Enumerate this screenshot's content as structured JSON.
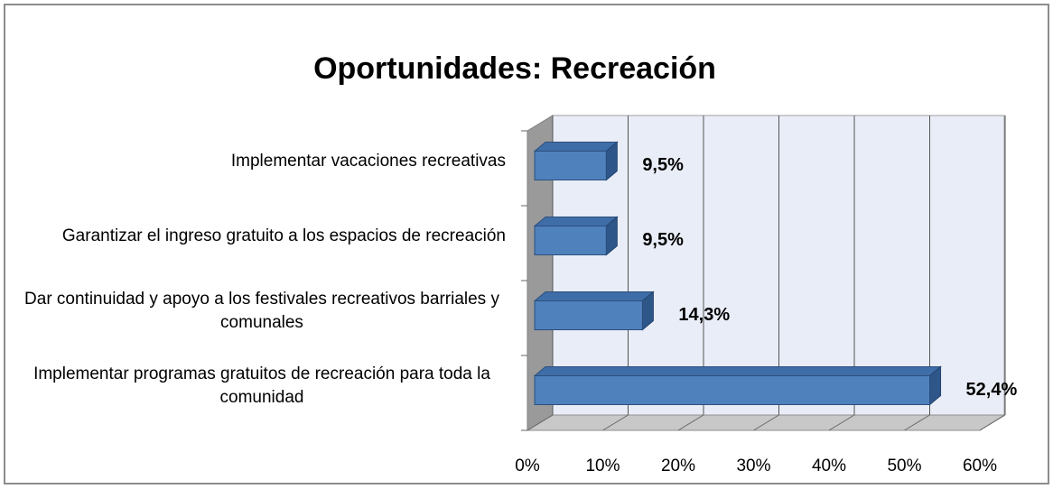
{
  "chart_data": {
    "type": "barh",
    "title": "Oportunidades: Recreación",
    "categories": [
      "Implementar vacaciones recreativas",
      "Garantizar el ingreso gratuito a los espacios de recreación",
      "Dar continuidad y apoyo a los festivales recreativos barriales y comunales",
      "Implementar programas gratuitos de recreación para toda la comunidad"
    ],
    "values": [
      9.5,
      9.5,
      14.3,
      52.4
    ],
    "value_labels": [
      "9,5%",
      "9,5%",
      "14,3%",
      "52,4%"
    ],
    "color": "#4f81bd",
    "xlim": [
      0,
      60
    ],
    "xticks": [
      {
        "value": 0,
        "label": "0%"
      },
      {
        "value": 10,
        "label": "10%"
      },
      {
        "value": 20,
        "label": "20%"
      },
      {
        "value": 30,
        "label": "30%"
      },
      {
        "value": 40,
        "label": "40%"
      },
      {
        "value": 50,
        "label": "50%"
      },
      {
        "value": 60,
        "label": "60%"
      }
    ],
    "grid": true
  }
}
